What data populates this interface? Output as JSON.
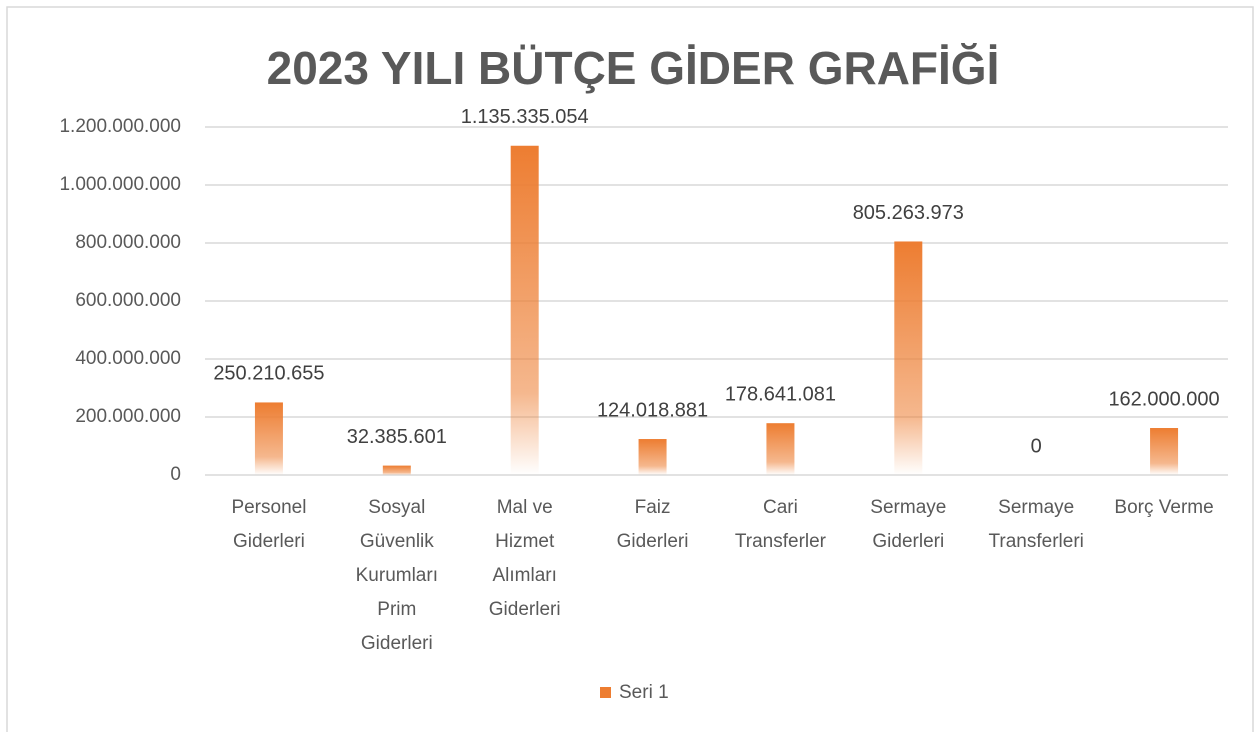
{
  "chart_data": {
    "type": "bar",
    "title": "2023 YILI BÜTÇE GİDER GRAFİĞİ",
    "categories": [
      "Personel Giderleri",
      "Sosyal Güvenlik Kurumları Prim Giderleri",
      "Mal ve Hizmet Alımları Giderleri",
      "Faiz Giderleri",
      "Cari Transferler",
      "Sermaye Giderleri",
      "Sermaye Transferleri",
      "Borç Verme"
    ],
    "series": [
      {
        "name": "Seri 1",
        "color": "#ed7d31",
        "values": [
          250210655,
          32385601,
          1135335054,
          124018881,
          178641081,
          805263973,
          0,
          162000000
        ],
        "value_labels": [
          "250.210.655",
          "32.385.601",
          "1.135.335.054",
          "124.018.881",
          "178.641.081",
          "805.263.973",
          "0",
          "162.000.000"
        ]
      }
    ],
    "ylim": [
      0,
      1200000000
    ],
    "yticks": [
      0,
      {
        "value": 200000000,
        "label": "200.000.000"
      },
      {
        "value": 400000000,
        "label": "400.000.000"
      },
      {
        "value": 600000000,
        "label": "600.000.000"
      },
      {
        "value": 800000000,
        "label": "800.000.000"
      },
      {
        "value": 1000000000,
        "label": "1.000.000.000"
      },
      {
        "value": 1200000000,
        "label": "1.200.000.000"
      }
    ],
    "grid": true,
    "legend": "bottom"
  }
}
